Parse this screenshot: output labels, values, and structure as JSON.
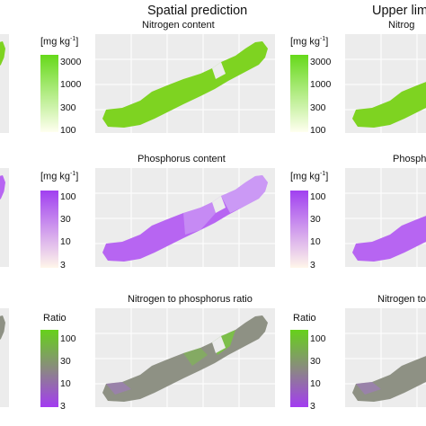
{
  "header": {
    "spatial_prediction": "Spatial prediction",
    "upper_limit": "Upper limit"
  },
  "chart_data": [
    {
      "type": "heatmap",
      "title": "Nitrogen content",
      "legend": {
        "title": "[mg kg",
        "unit_power": "-1",
        "title_close": "]",
        "ticks": [
          "3000",
          "1000",
          "300",
          "100"
        ],
        "range": [
          100,
          3000
        ],
        "scale": "log",
        "colors": [
          "#fffff0",
          "#66d91a"
        ]
      }
    },
    {
      "type": "heatmap",
      "title": "Phosphorus content",
      "legend": {
        "title": "[mg kg",
        "unit_power": "-1",
        "title_close": "]",
        "ticks": [
          "100",
          "30",
          "10",
          "3"
        ],
        "range": [
          3,
          100
        ],
        "scale": "log",
        "colors": [
          "#fff6ea",
          "#a040f0"
        ]
      }
    },
    {
      "type": "heatmap",
      "title": "Nitrogen to phosphorus ratio",
      "legend": {
        "title": "Ratio",
        "ticks": [
          "100",
          "30",
          "10",
          "3"
        ],
        "range": [
          3,
          100
        ],
        "scale": "log",
        "colors": [
          "#a33cf2",
          "#8a8a80",
          "#66d11a"
        ]
      }
    }
  ],
  "panels": {
    "upper_nitrogen_title": "Nitrog",
    "upper_phosphorus_title": "Phosph",
    "upper_ratio_title": "Nitrogen to"
  },
  "colors": {
    "nitrogen_fill": "#7ed321",
    "phosphorus_fill": "#b765f2",
    "phosphorus_pale": "#ddc4f8",
    "ratio_fill": "#8e9184",
    "ratio_green": "#78c93c",
    "ratio_purple": "#a672d6",
    "panel_bg": "#ececec",
    "grid": "#ffffff"
  }
}
